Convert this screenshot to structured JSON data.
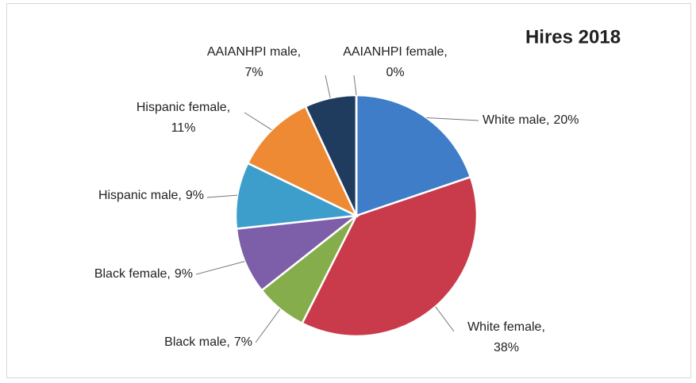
{
  "chart_data": {
    "type": "pie",
    "title": "Hires 2018",
    "categories": [
      "White male",
      "White female",
      "Black male",
      "Black female",
      "Hispanic male",
      "Hispanic female",
      "AAIANHPI male",
      "AAIANHPI female"
    ],
    "values": [
      20,
      38,
      7,
      9,
      9,
      11,
      7,
      0
    ],
    "value_labels": [
      "20%",
      "38%",
      "7%",
      "9%",
      "9%",
      "11%",
      "7%",
      "0%"
    ],
    "separator": ",",
    "colors": [
      "#3f7dc8",
      "#c93a4b",
      "#86ad4b",
      "#7c5fa8",
      "#3e9ecb",
      "#ee8a33",
      "#1f3b5e",
      "#8aa2cc"
    ]
  }
}
